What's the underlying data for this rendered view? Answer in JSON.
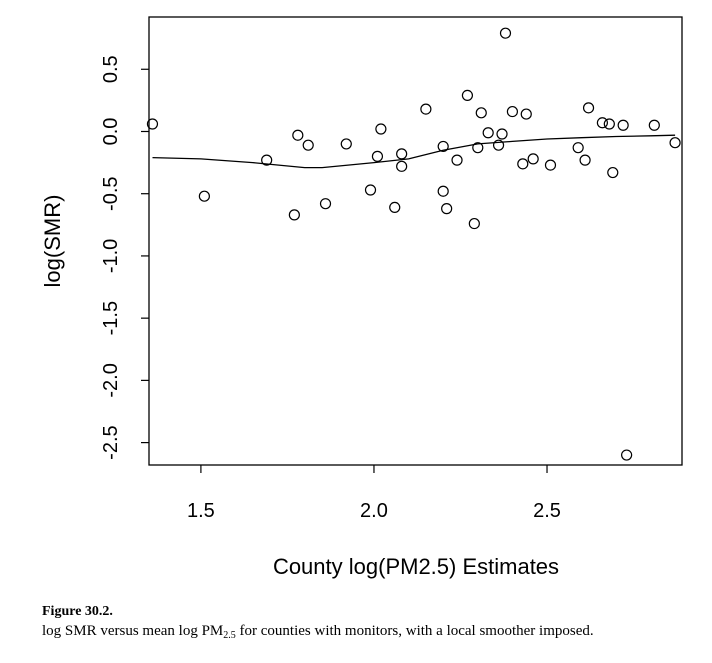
{
  "chart_data": {
    "type": "scatter",
    "xlabel": "County log(PM2.5) Estimates",
    "ylabel": "log(SMR)",
    "xlim": [
      1.35,
      2.89
    ],
    "ylim": [
      -2.68,
      0.92
    ],
    "x_ticks": [
      {
        "value": 1.5,
        "label": "1.5"
      },
      {
        "value": 2.0,
        "label": "2.0"
      },
      {
        "value": 2.5,
        "label": "2.5"
      }
    ],
    "y_ticks": [
      {
        "value": 0.5,
        "label": "0.5"
      },
      {
        "value": 0.0,
        "label": "0.0"
      },
      {
        "value": -0.5,
        "label": "-0.5"
      },
      {
        "value": -1.0,
        "label": "-1.0"
      },
      {
        "value": -1.5,
        "label": "-1.5"
      },
      {
        "value": -2.0,
        "label": "-2.0"
      },
      {
        "value": -2.5,
        "label": "-2.5"
      }
    ],
    "grid": false,
    "points": [
      {
        "x": 1.36,
        "y": 0.06
      },
      {
        "x": 1.51,
        "y": -0.52
      },
      {
        "x": 1.69,
        "y": -0.23
      },
      {
        "x": 1.77,
        "y": -0.67
      },
      {
        "x": 1.78,
        "y": -0.03
      },
      {
        "x": 1.81,
        "y": -0.11
      },
      {
        "x": 1.86,
        "y": -0.58
      },
      {
        "x": 1.92,
        "y": -0.1
      },
      {
        "x": 1.99,
        "y": -0.47
      },
      {
        "x": 2.01,
        "y": -0.2
      },
      {
        "x": 2.02,
        "y": 0.02
      },
      {
        "x": 2.06,
        "y": -0.61
      },
      {
        "x": 2.08,
        "y": -0.28
      },
      {
        "x": 2.08,
        "y": -0.18
      },
      {
        "x": 2.15,
        "y": 0.18
      },
      {
        "x": 2.2,
        "y": -0.48
      },
      {
        "x": 2.2,
        "y": -0.12
      },
      {
        "x": 2.21,
        "y": -0.62
      },
      {
        "x": 2.24,
        "y": -0.23
      },
      {
        "x": 2.27,
        "y": 0.29
      },
      {
        "x": 2.29,
        "y": -0.74
      },
      {
        "x": 2.3,
        "y": -0.13
      },
      {
        "x": 2.31,
        "y": 0.15
      },
      {
        "x": 2.33,
        "y": -0.01
      },
      {
        "x": 2.36,
        "y": -0.11
      },
      {
        "x": 2.37,
        "y": -0.02
      },
      {
        "x": 2.38,
        "y": 0.79
      },
      {
        "x": 2.4,
        "y": 0.16
      },
      {
        "x": 2.43,
        "y": -0.26
      },
      {
        "x": 2.44,
        "y": 0.14
      },
      {
        "x": 2.46,
        "y": -0.22
      },
      {
        "x": 2.51,
        "y": -0.27
      },
      {
        "x": 2.59,
        "y": -0.13
      },
      {
        "x": 2.61,
        "y": -0.23
      },
      {
        "x": 2.62,
        "y": 0.19
      },
      {
        "x": 2.66,
        "y": 0.07
      },
      {
        "x": 2.68,
        "y": 0.06
      },
      {
        "x": 2.69,
        "y": -0.33
      },
      {
        "x": 2.72,
        "y": 0.05
      },
      {
        "x": 2.73,
        "y": -2.6
      },
      {
        "x": 2.81,
        "y": 0.05
      },
      {
        "x": 2.87,
        "y": -0.09
      }
    ],
    "smoother": [
      {
        "x": 1.36,
        "y": -0.21
      },
      {
        "x": 1.5,
        "y": -0.22
      },
      {
        "x": 1.65,
        "y": -0.25
      },
      {
        "x": 1.8,
        "y": -0.29
      },
      {
        "x": 1.85,
        "y": -0.29
      },
      {
        "x": 2.0,
        "y": -0.25
      },
      {
        "x": 2.1,
        "y": -0.22
      },
      {
        "x": 2.2,
        "y": -0.15
      },
      {
        "x": 2.3,
        "y": -0.1
      },
      {
        "x": 2.4,
        "y": -0.08
      },
      {
        "x": 2.5,
        "y": -0.06
      },
      {
        "x": 2.6,
        "y": -0.05
      },
      {
        "x": 2.7,
        "y": -0.04
      },
      {
        "x": 2.8,
        "y": -0.035
      },
      {
        "x": 2.87,
        "y": -0.03
      }
    ]
  },
  "caption": {
    "label": "Figure 30.2.",
    "text_before": "log SMR versus mean log PM",
    "subscript": "2.5",
    "text_after": " for counties with monitors, with a local smoother imposed."
  }
}
